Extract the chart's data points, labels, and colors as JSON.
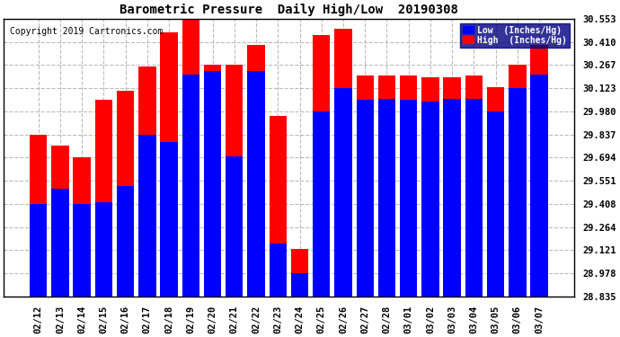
{
  "title": "Barometric Pressure  Daily High/Low  20190308",
  "copyright": "Copyright 2019 Cartronics.com",
  "low_color": "#0000ff",
  "high_color": "#ff0000",
  "background_color": "#ffffff",
  "plot_bg_color": "#ffffff",
  "grid_color": "#aaaaaa",
  "yticks": [
    28.835,
    28.978,
    29.121,
    29.264,
    29.408,
    29.551,
    29.694,
    29.837,
    29.98,
    30.123,
    30.267,
    30.41,
    30.553
  ],
  "ylim_min": 28.835,
  "ylim_max": 30.553,
  "dates": [
    "02/12",
    "02/13",
    "02/14",
    "02/15",
    "02/16",
    "02/17",
    "02/18",
    "02/19",
    "02/20",
    "02/21",
    "02/22",
    "02/23",
    "02/24",
    "02/25",
    "02/26",
    "02/27",
    "02/28",
    "03/01",
    "03/02",
    "03/03",
    "03/04",
    "03/05",
    "03/06",
    "03/07"
  ],
  "high_values": [
    29.837,
    29.77,
    29.694,
    30.05,
    30.11,
    30.26,
    30.47,
    30.553,
    30.267,
    30.267,
    30.39,
    29.95,
    29.13,
    30.45,
    30.49,
    30.2,
    30.2,
    30.2,
    30.19,
    30.19,
    30.2,
    30.13,
    30.267,
    30.39
  ],
  "low_values": [
    29.408,
    29.5,
    29.408,
    29.42,
    29.52,
    29.837,
    29.79,
    30.21,
    30.23,
    29.7,
    30.23,
    29.16,
    28.978,
    29.98,
    30.123,
    30.05,
    30.06,
    30.05,
    30.04,
    30.06,
    30.06,
    29.98,
    30.123,
    30.21
  ],
  "bar_width": 0.8,
  "title_fontsize": 10,
  "tick_fontsize": 7.5,
  "copyright_fontsize": 7,
  "legend_fontsize": 7
}
